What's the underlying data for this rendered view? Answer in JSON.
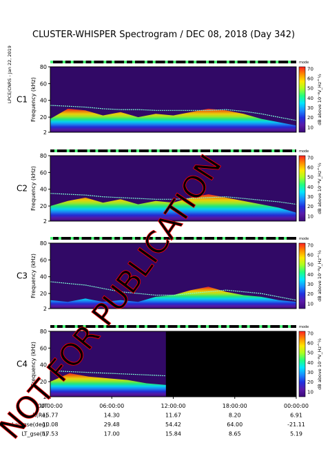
{
  "title": "CLUSTER-WHISPER Spectrogram / DEC 08, 2018 (Day 342)",
  "side_note": "LPCE/CNRS - Jan 22, 2019",
  "watermark": "NOT FOR PUBLICATION",
  "colors": {
    "background": "#000000",
    "spectrum_low": "#3a0a78",
    "spectrum_high": "#ff2020",
    "c3_label": "#22bb22",
    "annotation_red": "#ff0000"
  },
  "chart_data": {
    "type": "heatmap",
    "ylabel": "Frequency (kHz)",
    "yticks": [
      2,
      20,
      40,
      60,
      80
    ],
    "ylim": [
      2,
      80
    ],
    "xticks": [
      "00:00:00",
      "06:00:00",
      "12:00:00",
      "18:00:00",
      "00:00:00"
    ],
    "colorbar": {
      "label": "dB above 10⁻⁸V_Hz^½",
      "ticks": [
        10,
        20,
        30,
        40,
        50,
        60,
        70
      ],
      "range": [
        5,
        72
      ],
      "stops": [
        "#3a0a78",
        "#5a1aa8",
        "#2030e0",
        "#1a8cff",
        "#00e6ff",
        "#20ff80",
        "#a8ff20",
        "#ffe600",
        "#ff8a00",
        "#ff2020"
      ]
    },
    "panels": [
      {
        "name": "C1",
        "mode_label": "mode",
        "plasma_line_khz": [
          34,
          33,
          32,
          30,
          29,
          29,
          28,
          28,
          28,
          28,
          29,
          27,
          24,
          20,
          16
        ],
        "band_top_khz": [
          18,
          30,
          28,
          22,
          26,
          20,
          24,
          22,
          26,
          30,
          28,
          24,
          18,
          14,
          10
        ],
        "has_data_to_end": true
      },
      {
        "name": "C2",
        "mode_label": "mode",
        "plasma_line_khz": [
          35,
          34,
          33,
          31,
          30,
          29,
          28,
          28,
          29,
          30,
          31,
          29,
          27,
          25,
          22
        ],
        "band_top_khz": [
          20,
          26,
          30,
          24,
          28,
          22,
          26,
          24,
          30,
          34,
          30,
          26,
          22,
          18,
          12
        ],
        "has_data_to_end": true
      },
      {
        "name": "C3",
        "mode_label": "mode",
        "plasma_line_khz": [
          34,
          32,
          30,
          26,
          22,
          20,
          18,
          18,
          20,
          22,
          24,
          22,
          20,
          16,
          12
        ],
        "band_top_khz": [
          12,
          10,
          14,
          10,
          12,
          10,
          16,
          18,
          24,
          28,
          22,
          18,
          16,
          12,
          10
        ],
        "has_data_to_end": true
      },
      {
        "name": "C4",
        "mode_label": "mode",
        "plasma_line_khz": [
          33,
          32,
          31,
          30,
          29,
          28,
          27
        ],
        "band_top_khz": [
          20,
          30,
          26,
          24,
          22,
          18,
          16
        ],
        "has_data_to_end": false
      }
    ]
  },
  "ephemeris": {
    "rows": [
      {
        "label": "UT",
        "values": [
          "00:00:00",
          "06:00:00",
          "12:00:00",
          "18:00:00",
          "00:00:00"
        ]
      },
      {
        "label": "R(Re)",
        "values": [
          "15.77",
          "14.30",
          "11.67",
          "8.20",
          "6.91"
        ]
      },
      {
        "label": "Lat_gse(deg)",
        "values": [
          "10.08",
          "29.48",
          "54.42",
          "64.00",
          "-21.11"
        ]
      },
      {
        "label": "LT_gse(h)",
        "values": [
          "17.53",
          "17.00",
          "15.84",
          "8.65",
          "5.19"
        ]
      }
    ]
  }
}
